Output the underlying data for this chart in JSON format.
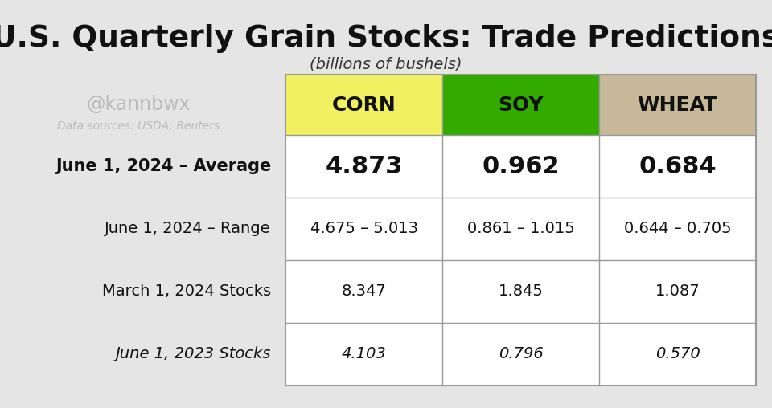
{
  "title": "U.S. Quarterly Grain Stocks: Trade Predictions",
  "subtitle": "(billions of bushels)",
  "watermark": "@kannbwx",
  "source": "Data sources: USDA; Reuters",
  "background_color": "#e5e5e5",
  "header_colors": [
    "#f0f060",
    "#33aa00",
    "#c8b89a"
  ],
  "header_labels": [
    "CORN",
    "SOY",
    "WHEAT"
  ],
  "rows": [
    {
      "label": "June 1, 2024 – Average",
      "label_bold": true,
      "label_italic": false,
      "values": [
        "4.873",
        "0.962",
        "0.684"
      ],
      "bold": true,
      "italic_values": false,
      "fontsize": 22
    },
    {
      "label": "June 1, 2024 – Range",
      "label_bold": false,
      "label_italic": false,
      "values": [
        "4.675 – 5.013",
        "0.861 – 1.015",
        "0.644 – 0.705"
      ],
      "bold": false,
      "italic_values": false,
      "fontsize": 14
    },
    {
      "label": "March 1, 2024 Stocks",
      "label_bold": false,
      "label_italic": false,
      "values": [
        "8.347",
        "1.845",
        "1.087"
      ],
      "bold": false,
      "italic_values": false,
      "fontsize": 14
    },
    {
      "label": "June 1, 2023 Stocks",
      "label_bold": false,
      "label_italic": true,
      "values": [
        "4.103",
        "0.796",
        "0.570"
      ],
      "bold": false,
      "italic_values": true,
      "fontsize": 14
    }
  ]
}
